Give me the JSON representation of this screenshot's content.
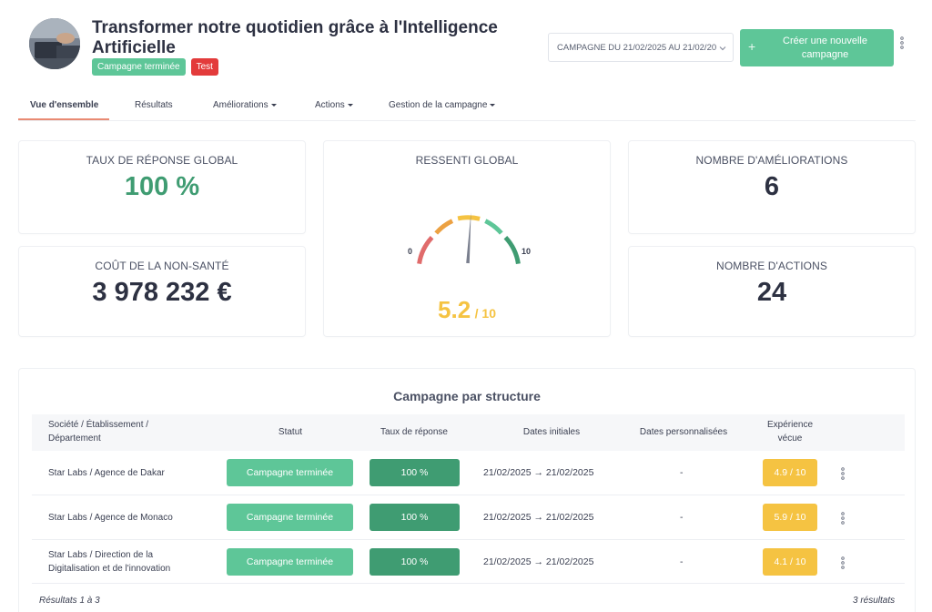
{
  "header": {
    "title": "Transformer notre quotidien grâce à l'Intelligence Artificielle",
    "badge_status": "Campagne terminée",
    "badge_test": "Test",
    "campaign_select": "CAMPAGNE DU 21/02/2025 AU 21/02/20",
    "create_button": "Créer une nouvelle campagne",
    "plus_glyph": "+"
  },
  "tabs": [
    {
      "label": "Vue d'ensemble",
      "active": true
    },
    {
      "label": "Résultats",
      "active": false
    },
    {
      "label": "Améliorations",
      "active": false,
      "dropdown": true
    },
    {
      "label": "Actions",
      "active": false,
      "dropdown": true
    },
    {
      "label": "Gestion de la campagne",
      "active": false,
      "dropdown": true
    }
  ],
  "kpis": {
    "response_rate": {
      "label": "TAUX DE RÉPONSE GLOBAL",
      "value": "100 %"
    },
    "cost": {
      "label": "COÛT DE LA NON-SANTÉ",
      "value": "3 978 232 €"
    },
    "feeling": {
      "label": "RESSENTI GLOBAL",
      "min": "0",
      "max": "10",
      "score": "5.2",
      "score_suffix": "/ 10",
      "score_value": 5.2,
      "score_max": 10
    },
    "improvements": {
      "label": "NOMBRE D'AMÉLIORATIONS",
      "value": "6"
    },
    "actions": {
      "label": "NOMBRE D'ACTIONS",
      "value": "24"
    }
  },
  "table": {
    "title": "Campagne par structure",
    "headers": {
      "structure": "Société / Établissement / Département",
      "status": "Statut",
      "rate": "Taux de réponse",
      "dates": "Dates initiales",
      "custom_dates": "Dates personnalisées",
      "experience": "Expérience vécue"
    },
    "rows": [
      {
        "name": "Star Labs / Agence de Dakar",
        "status": "Campagne terminée",
        "rate": "100 %",
        "dates": "21/02/2025 → 21/02/2025",
        "custom": "-",
        "experience": "4.9 / 10"
      },
      {
        "name": "Star Labs / Agence de Monaco",
        "status": "Campagne terminée",
        "rate": "100 %",
        "dates": "21/02/2025 → 21/02/2025",
        "custom": "-",
        "experience": "5.9 / 10"
      },
      {
        "name": "Star Labs / Direction de la Digitalisation et de l'innovation",
        "status": "Campagne terminée",
        "rate": "100 %",
        "dates": "21/02/2025 → 21/02/2025",
        "custom": "-",
        "experience": "4.1 / 10"
      }
    ],
    "footer_left": "Résultats 1 à 3",
    "footer_right": "3 résultats"
  },
  "colors": {
    "green": "#5ec698",
    "dark_green": "#3f9c72",
    "yellow": "#f5c342",
    "red": "#e33b3b",
    "accent_tab": "#e98a73"
  },
  "icons": [
    "avatar-photo",
    "chevron-down-icon",
    "plus-icon",
    "more-vert-icon"
  ]
}
